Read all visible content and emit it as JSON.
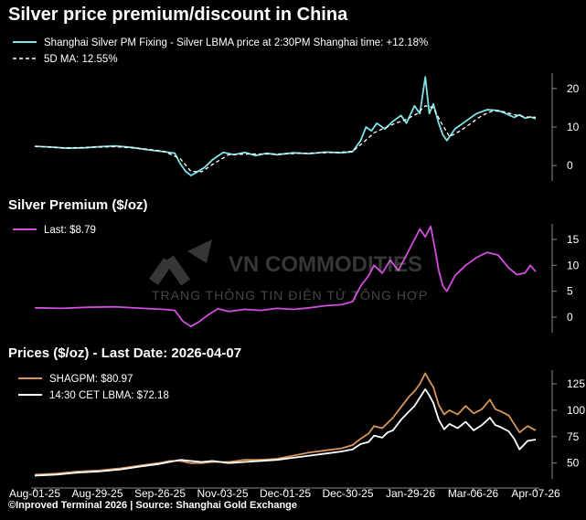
{
  "chart_data": [
    {
      "type": "line",
      "title": "Silver price premium/discount in China",
      "ylim": [
        -4,
        24
      ],
      "yticks": [
        0,
        10,
        20
      ],
      "grid": false,
      "legend_placement": "top-left",
      "series": [
        {
          "name": "Shanghai Silver PM Fixing - Silver LBMA price at 2:30PM Shanghai time: +12.18%",
          "color": "#7fe3ea",
          "dash": false,
          "values": [
            [
              0,
              5
            ],
            [
              6,
              4.8
            ],
            [
              12,
              4.5
            ],
            [
              18,
              4.6
            ],
            [
              24,
              4.9
            ],
            [
              30,
              5.1
            ],
            [
              36,
              4.7
            ],
            [
              42,
              4.1
            ],
            [
              48,
              3.6
            ],
            [
              52,
              3.2
            ],
            [
              54,
              0.5
            ],
            [
              56,
              -1.5
            ],
            [
              58,
              -2.6
            ],
            [
              60,
              -1.8
            ],
            [
              63,
              -0.5
            ],
            [
              66,
              1.5
            ],
            [
              70,
              3.4
            ],
            [
              74,
              2.8
            ],
            [
              78,
              3.4
            ],
            [
              82,
              2.6
            ],
            [
              86,
              3.2
            ],
            [
              90,
              2.8
            ],
            [
              96,
              3.3
            ],
            [
              102,
              3.1
            ],
            [
              108,
              3.5
            ],
            [
              114,
              3.3
            ],
            [
              118,
              3.6
            ],
            [
              121,
              6.5
            ],
            [
              123,
              10
            ],
            [
              125,
              9
            ],
            [
              127,
              11
            ],
            [
              130,
              9.5
            ],
            [
              133,
              11.5
            ],
            [
              136,
              13
            ],
            [
              138,
              11
            ],
            [
              141,
              15.5
            ],
            [
              143,
              13.5
            ],
            [
              145,
              23
            ],
            [
              146.5,
              13.5
            ],
            [
              148,
              16
            ],
            [
              150,
              11
            ],
            [
              151.5,
              8
            ],
            [
              153,
              6.5
            ],
            [
              156,
              9.5
            ],
            [
              160,
              11.5
            ],
            [
              164,
              13.5
            ],
            [
              168,
              14.5
            ],
            [
              172,
              14.3
            ],
            [
              175,
              13.5
            ],
            [
              178,
              12.5
            ],
            [
              180,
              13.2
            ],
            [
              182,
              12.3
            ],
            [
              184,
              12.6
            ],
            [
              186,
              12.18
            ]
          ]
        },
        {
          "name": "5D MA: 12.55%",
          "color": "#ffffff",
          "dash": true,
          "values": [
            [
              0,
              5
            ],
            [
              10,
              4.6
            ],
            [
              20,
              4.7
            ],
            [
              30,
              4.9
            ],
            [
              40,
              4.4
            ],
            [
              48,
              3.7
            ],
            [
              54,
              1.8
            ],
            [
              58,
              -1.5
            ],
            [
              62,
              -1.6
            ],
            [
              66,
              0.3
            ],
            [
              72,
              2.8
            ],
            [
              80,
              3.0
            ],
            [
              90,
              3.0
            ],
            [
              100,
              3.2
            ],
            [
              112,
              3.4
            ],
            [
              118,
              3.7
            ],
            [
              122,
              6
            ],
            [
              126,
              8.5
            ],
            [
              130,
              9.8
            ],
            [
              134,
              11
            ],
            [
              138,
              12
            ],
            [
              142,
              13.5
            ],
            [
              145,
              15.5
            ],
            [
              148,
              15
            ],
            [
              151,
              11
            ],
            [
              154,
              7.5
            ],
            [
              158,
              9
            ],
            [
              162,
              11
            ],
            [
              166,
              13
            ],
            [
              170,
              14.2
            ],
            [
              174,
              14
            ],
            [
              178,
              13.2
            ],
            [
              182,
              12.6
            ],
            [
              186,
              12.55
            ]
          ]
        }
      ]
    },
    {
      "type": "line",
      "title": "Silver Premium ($/oz)",
      "ylim": [
        -3,
        18
      ],
      "yticks": [
        0,
        5,
        10,
        15
      ],
      "grid": false,
      "legend_placement": "top-left",
      "series": [
        {
          "name": "Last: $8.79",
          "color": "#d34de0",
          "dash": false,
          "values": [
            [
              0,
              1.8
            ],
            [
              10,
              1.7
            ],
            [
              20,
              1.9
            ],
            [
              30,
              2.0
            ],
            [
              40,
              1.7
            ],
            [
              48,
              1.5
            ],
            [
              52,
              1.3
            ],
            [
              55,
              -0.8
            ],
            [
              58,
              -1.8
            ],
            [
              61,
              -0.9
            ],
            [
              64,
              0.3
            ],
            [
              68,
              1.6
            ],
            [
              72,
              1.1
            ],
            [
              78,
              1.5
            ],
            [
              84,
              1.3
            ],
            [
              90,
              1.7
            ],
            [
              96,
              1.5
            ],
            [
              102,
              1.8
            ],
            [
              108,
              2.2
            ],
            [
              114,
              2.4
            ],
            [
              118,
              3.0
            ],
            [
              121,
              6
            ],
            [
              124,
              8
            ],
            [
              126,
              10
            ],
            [
              129,
              8.5
            ],
            [
              132,
              11
            ],
            [
              135,
              9
            ],
            [
              138,
              12
            ],
            [
              141,
              15
            ],
            [
              143,
              17
            ],
            [
              145,
              15.5
            ],
            [
              147,
              17.5
            ],
            [
              148.5,
              13.5
            ],
            [
              150,
              9
            ],
            [
              151.5,
              6
            ],
            [
              153,
              5
            ],
            [
              156,
              8
            ],
            [
              160,
              10
            ],
            [
              164,
              11.5
            ],
            [
              168,
              12.5
            ],
            [
              172,
              12
            ],
            [
              176,
              9.5
            ],
            [
              179,
              8.2
            ],
            [
              182,
              8.5
            ],
            [
              184,
              10
            ],
            [
              186,
              8.79
            ]
          ]
        }
      ]
    },
    {
      "type": "line",
      "title": "Prices ($/oz) - Last Date: 2026-04-07",
      "ylim": [
        35,
        138
      ],
      "yticks": [
        50,
        75,
        100,
        125
      ],
      "xticks": [
        "Aug-01-25",
        "Aug-29-25",
        "Sep-26-25",
        "Nov-03-25",
        "Dec-01-25",
        "Dec-30-25",
        "Jan-29-26",
        "Mar-06-26",
        "Apr-07-26"
      ],
      "grid": false,
      "legend_placement": "top-left",
      "series": [
        {
          "name": "SHAGPM: $80.97",
          "color": "#d9955a",
          "dash": false,
          "values": [
            [
              0,
              39
            ],
            [
              8,
              40
            ],
            [
              16,
              42
            ],
            [
              24,
              43
            ],
            [
              32,
              45
            ],
            [
              40,
              48
            ],
            [
              46,
              50
            ],
            [
              50,
              52
            ],
            [
              54,
              52
            ],
            [
              58,
              50
            ],
            [
              62,
              50
            ],
            [
              66,
              51
            ],
            [
              72,
              51
            ],
            [
              78,
              53
            ],
            [
              84,
              53
            ],
            [
              90,
              54
            ],
            [
              96,
              57
            ],
            [
              102,
              60
            ],
            [
              108,
              62
            ],
            [
              114,
              64
            ],
            [
              118,
              67
            ],
            [
              121,
              73
            ],
            [
              124,
              78
            ],
            [
              126,
              85
            ],
            [
              129,
              83
            ],
            [
              131,
              88
            ],
            [
              133,
              93
            ],
            [
              136,
              103
            ],
            [
              139,
              113
            ],
            [
              141,
              118
            ],
            [
              143,
              125
            ],
            [
              145,
              135
            ],
            [
              146.5,
              128
            ],
            [
              148,
              122
            ],
            [
              150,
              105
            ],
            [
              152,
              96
            ],
            [
              154,
              100
            ],
            [
              157,
              96
            ],
            [
              160,
              104
            ],
            [
              163,
              97
            ],
            [
              166,
              101
            ],
            [
              169,
              110
            ],
            [
              171,
              101
            ],
            [
              173,
              99
            ],
            [
              176,
              95
            ],
            [
              178,
              87
            ],
            [
              180,
              79
            ],
            [
              183,
              85
            ],
            [
              186,
              80.97
            ]
          ]
        },
        {
          "name": "14:30 CET LBMA: $72.18",
          "color": "#ffffff",
          "dash": false,
          "values": [
            [
              0,
              38
            ],
            [
              8,
              39
            ],
            [
              16,
              41
            ],
            [
              24,
              42
            ],
            [
              32,
              44
            ],
            [
              40,
              47
            ],
            [
              46,
              49
            ],
            [
              50,
              51
            ],
            [
              54,
              53
            ],
            [
              58,
              52
            ],
            [
              62,
              51
            ],
            [
              66,
              52
            ],
            [
              72,
              50
            ],
            [
              78,
              51
            ],
            [
              84,
              52
            ],
            [
              90,
              53
            ],
            [
              96,
              55
            ],
            [
              102,
              57
            ],
            [
              108,
              59
            ],
            [
              114,
              61
            ],
            [
              118,
              63
            ],
            [
              121,
              68
            ],
            [
              124,
              70
            ],
            [
              126,
              76
            ],
            [
              129,
              74
            ],
            [
              131,
              79
            ],
            [
              133,
              81
            ],
            [
              136,
              91
            ],
            [
              139,
              99
            ],
            [
              141,
              104
            ],
            [
              143,
              112
            ],
            [
              145,
              120
            ],
            [
              146.5,
              114
            ],
            [
              148,
              107
            ],
            [
              150,
              91
            ],
            [
              152,
              82
            ],
            [
              154,
              87
            ],
            [
              157,
              83
            ],
            [
              160,
              89
            ],
            [
              163,
              81
            ],
            [
              166,
              86
            ],
            [
              169,
              93
            ],
            [
              171,
              86
            ],
            [
              173,
              84
            ],
            [
              176,
              80
            ],
            [
              178,
              73
            ],
            [
              180,
              63
            ],
            [
              183,
              71
            ],
            [
              186,
              72.18
            ]
          ]
        }
      ]
    }
  ],
  "footer": "©Inproved Terminal 2026 | Source: Shanghai Gold Exchange",
  "watermark": {
    "line1": "VN COMMODITIES",
    "line2": "TRANG THÔNG TIN ĐIỆN TỬ TỔNG HỢP"
  }
}
